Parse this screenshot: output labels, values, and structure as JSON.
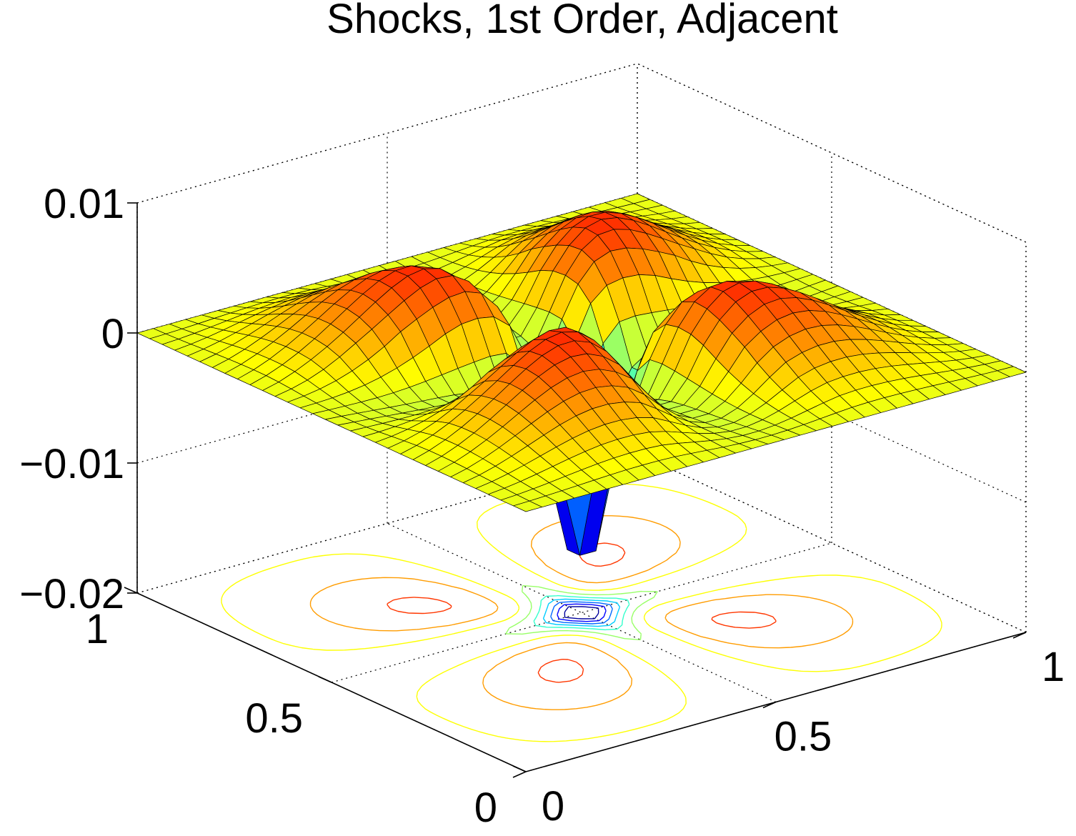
{
  "chart_data": {
    "type": "surface",
    "title": "Shocks, 1st Order, Adjacent",
    "xlabel": "",
    "ylabel": "",
    "zlabel": "",
    "xlim": [
      0,
      1
    ],
    "ylim": [
      0,
      1
    ],
    "zlim": [
      -0.02,
      0.01
    ],
    "x_ticks": [
      "0",
      "0.5",
      "1"
    ],
    "y_ticks": [
      "0",
      "0.5",
      "1"
    ],
    "z_ticks": [
      "-0.02",
      "-0.01",
      "0",
      "0.01"
    ],
    "z_tick_labels": [
      "−0.02",
      "−0.01",
      "0",
      "0.01"
    ],
    "grid": true,
    "colormap": "jet",
    "contour_projection": true,
    "surface_features": {
      "max_z": 0.01,
      "min_z": -0.015,
      "center": [
        0.5,
        0.5
      ],
      "center_z": -0.0145,
      "ridges": [
        "diagonal arms along x=y and x=1-y",
        "axial arms along x=0.5 and y=0.5"
      ],
      "peaks_z": 0.01,
      "edge_z": 0.0
    },
    "colors": {
      "dark_red": "#8b0000",
      "red": "#e31a1c",
      "orange": "#ff8c00",
      "yellow": "#ffe600",
      "green": "#7fff7f",
      "cyan": "#00e5e5",
      "blue": "#1f6fff",
      "navy": "#00007f"
    }
  }
}
